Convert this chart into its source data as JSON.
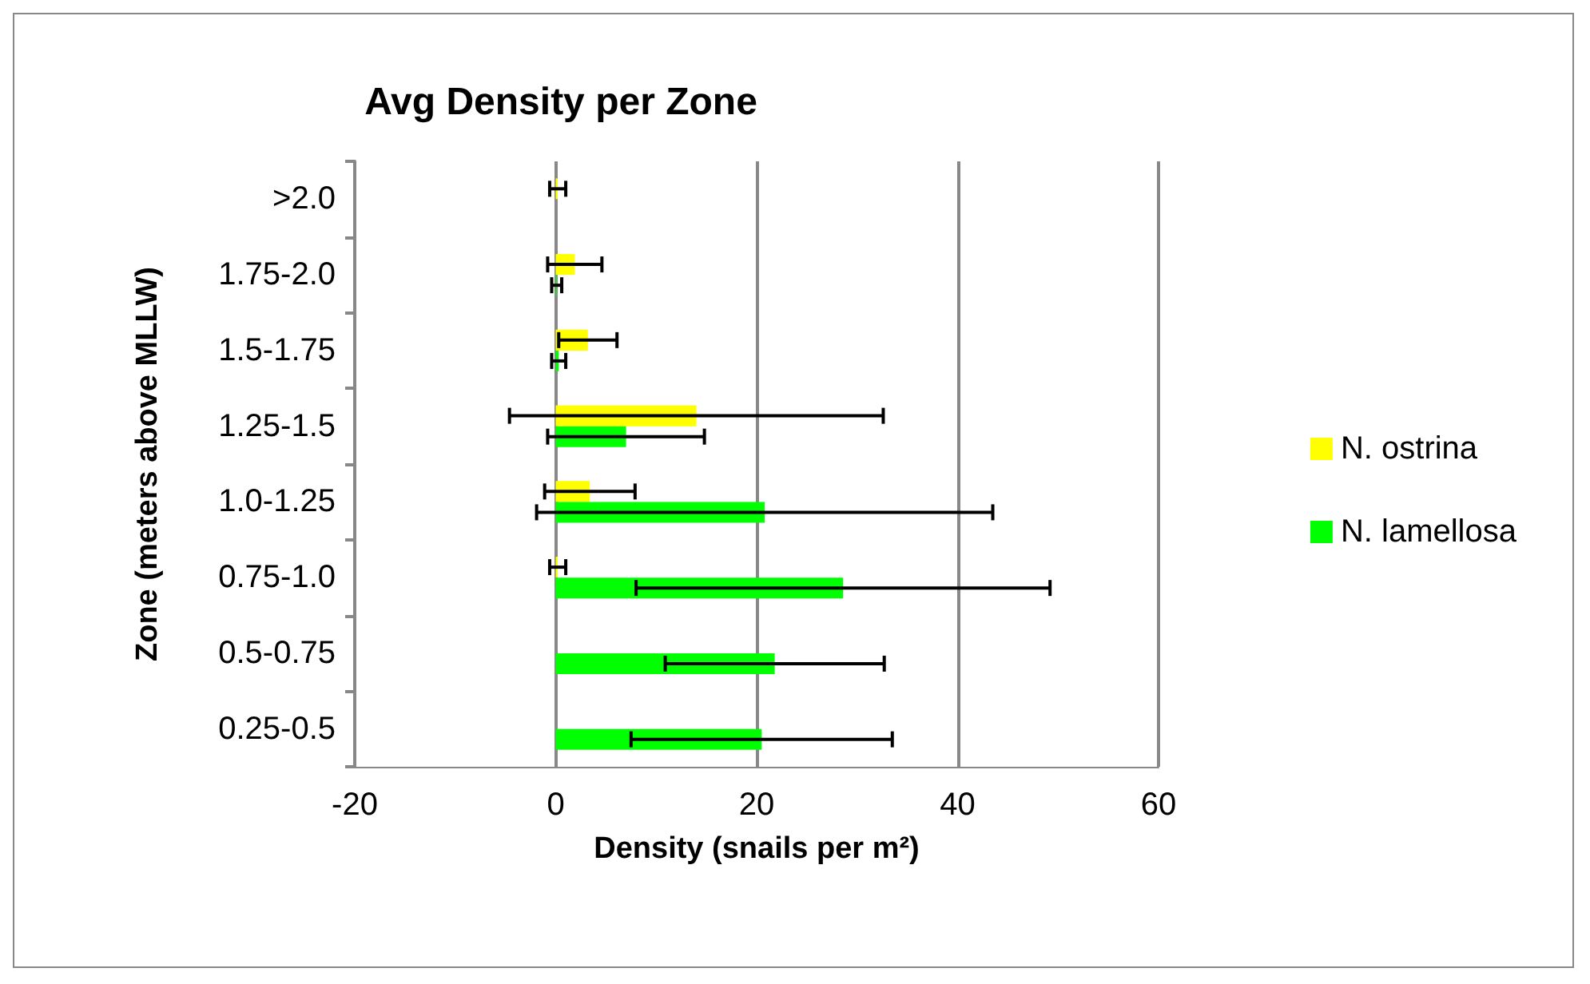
{
  "chart_data": {
    "type": "bar",
    "orientation": "horizontal",
    "title": "Avg Density per Zone",
    "xlabel": "Density (snails per m²)",
    "ylabel": "Zone (meters above MLLW)",
    "categories": [
      ">2.0",
      "1.75-2.0",
      "1.5-1.75",
      "1.25-1.5",
      "1.0-1.25",
      "0.75-1.0",
      "0.5-0.75",
      "0.25-0.5"
    ],
    "series": [
      {
        "name": "N. ostrina",
        "color": "#ffff00",
        "values": [
          0.2,
          1.9,
          3.2,
          14.0,
          3.4,
          0.2,
          0,
          0
        ],
        "errors": [
          0.8,
          2.7,
          2.9,
          18.6,
          4.5,
          0.8,
          null,
          null
        ]
      },
      {
        "name": "N. lamellosa",
        "color": "#00ff00",
        "values": [
          0,
          0.1,
          0.3,
          7.0,
          20.8,
          28.6,
          21.8,
          20.5
        ],
        "errors": [
          null,
          0.5,
          0.7,
          7.8,
          22.7,
          20.6,
          10.9,
          13.0
        ]
      }
    ],
    "xlim": [
      -20,
      60
    ],
    "xticks": [
      -20,
      0,
      20,
      40,
      60
    ],
    "grid": "x",
    "legend": "right"
  }
}
